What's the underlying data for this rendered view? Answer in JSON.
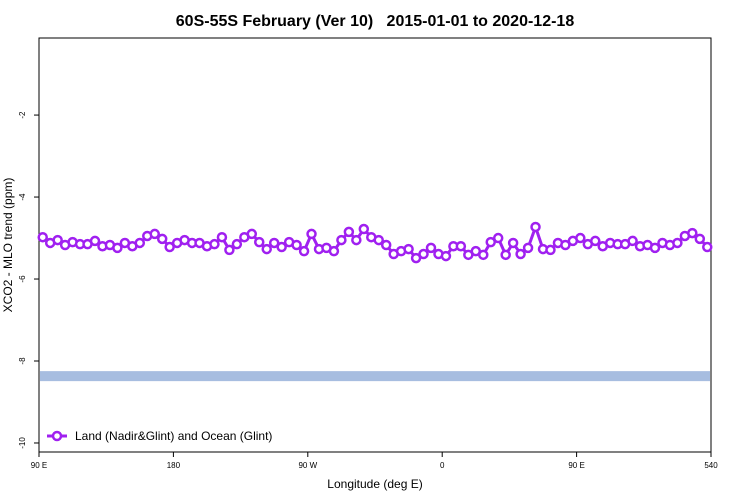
{
  "chart_data": {
    "type": "line",
    "title": "60S-55S February (Ver 10)   2015-01-01 to 2020-12-18",
    "x_label": "Longitude (deg E)",
    "y_label": "XCO2 - MLO trend (ppm)",
    "xlim": [
      90,
      540
    ],
    "ylim": [
      -10.22,
      -0.12
    ],
    "xticks": [
      {
        "value": 90,
        "label": "90 E"
      },
      180,
      {
        "value": 270,
        "label": "90 W"
      },
      {
        "value": 360,
        "label": "0"
      },
      {
        "value": 450,
        "label": "90 E"
      },
      540
    ],
    "yticks": [
      -2,
      -4,
      -6,
      -8,
      -10
    ],
    "legend": "bottom-left",
    "reference_band": {
      "y": -8.37,
      "color": "#a7bde0"
    },
    "x": [
      92.5,
      97.5,
      102.5,
      107.5,
      112.5,
      117.5,
      122.5,
      127.5,
      132.5,
      137.5,
      142.5,
      147.5,
      152.5,
      157.5,
      162.5,
      167.5,
      172.5,
      177.5,
      182.5,
      187.5,
      192.5,
      197.5,
      202.5,
      207.5,
      212.5,
      217.5,
      222.5,
      227.5,
      232.5,
      237.5,
      242.5,
      247.5,
      252.5,
      257.5,
      262.5,
      267.5,
      272.5,
      277.5,
      282.5,
      287.5,
      292.5,
      297.5,
      302.5,
      307.5,
      312.5,
      317.5,
      322.5,
      327.5,
      332.5,
      337.5,
      342.5,
      347.5,
      352.5,
      357.5,
      362.5,
      367.5,
      372.5,
      377.5,
      382.5,
      387.5,
      392.5,
      397.5,
      402.5,
      407.5,
      412.5,
      417.5,
      422.5,
      427.5,
      432.5,
      437.5,
      442.5,
      447.5,
      452.5,
      457.5,
      462.5,
      467.5,
      472.5,
      477.5,
      482.5,
      487.5,
      492.5,
      497.5,
      502.5,
      507.5,
      512.5,
      517.5,
      522.5,
      527.5,
      532.5,
      537.5
    ],
    "series": [
      {
        "name": "Land (Nadir&Glint) and Ocean (Glint)",
        "color": "#a020f0",
        "values": [
          -4.98,
          -5.12,
          -5.05,
          -5.17,
          -5.1,
          -5.15,
          -5.15,
          -5.07,
          -5.2,
          -5.17,
          -5.24,
          -5.12,
          -5.2,
          -5.12,
          -4.95,
          -4.9,
          -5.02,
          -5.22,
          -5.12,
          -5.05,
          -5.12,
          -5.12,
          -5.2,
          -5.15,
          -4.98,
          -5.29,
          -5.15,
          -4.98,
          -4.9,
          -5.1,
          -5.27,
          -5.12,
          -5.22,
          -5.1,
          -5.17,
          -5.32,
          -4.9,
          -5.27,
          -5.24,
          -5.32,
          -5.05,
          -4.85,
          -5.05,
          -4.78,
          -4.98,
          -5.05,
          -5.17,
          -5.39,
          -5.32,
          -5.27,
          -5.49,
          -5.39,
          -5.24,
          -5.39,
          -5.44,
          -5.2,
          -5.2,
          -5.41,
          -5.32,
          -5.41,
          -5.1,
          -5.0,
          -5.41,
          -5.12,
          -5.39,
          -5.24,
          -4.73,
          -5.27,
          -5.29,
          -5.12,
          -5.17,
          -5.07,
          -5.0,
          -5.15,
          -5.07,
          -5.2,
          -5.12,
          -5.15,
          -5.15,
          -5.07,
          -5.2,
          -5.17,
          -5.24,
          -5.12,
          -5.17,
          -5.12,
          -4.95,
          -4.88,
          -5.02,
          -5.22
        ]
      }
    ]
  }
}
